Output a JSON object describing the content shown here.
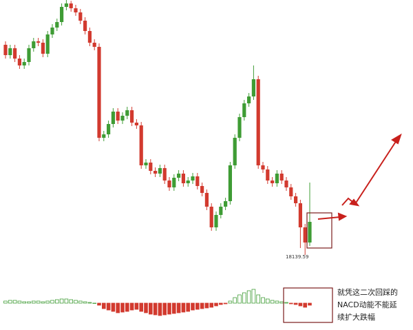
{
  "chart_data": {
    "type": "candlestick",
    "open": [
      19360,
      19300,
      19340,
      19280,
      19240,
      19260,
      19340,
      19380,
      19372,
      19308,
      19420,
      19460,
      19492,
      19580,
      19600,
      19572,
      19548,
      19500,
      19440,
      19372,
      19348,
      18820,
      18840,
      18900,
      18972,
      18920,
      18948,
      18980,
      18908,
      18892,
      18660,
      18676,
      18628,
      18612,
      18644,
      18572,
      18532,
      18588,
      18612,
      18556,
      18572,
      18596,
      18540,
      18500,
      18420,
      18300,
      18372,
      18420,
      18452,
      18660,
      18820,
      18940,
      19020,
      19060,
      19160,
      18660,
      18636,
      18572,
      18556,
      18612,
      18572,
      18532,
      18480,
      18440,
      18300,
      18212
    ],
    "high": [
      19380,
      19360,
      19360,
      19300,
      19280,
      19360,
      19400,
      19400,
      19392,
      19440,
      19480,
      19512,
      19600,
      19620,
      19615,
      19592,
      19568,
      19520,
      19460,
      19392,
      19368,
      18860,
      18920,
      18992,
      18992,
      18968,
      19000,
      19000,
      18928,
      18912,
      18696,
      18696,
      18648,
      18664,
      18664,
      18592,
      18608,
      18632,
      18632,
      18592,
      18616,
      18616,
      18560,
      18520,
      18440,
      18392,
      18440,
      18472,
      18680,
      18840,
      18960,
      19040,
      19080,
      19240,
      19180,
      18680,
      18656,
      18592,
      18632,
      18632,
      18592,
      18552,
      18500,
      18460,
      18320,
      18560
    ],
    "low": [
      19280,
      19280,
      19260,
      19220,
      19220,
      19240,
      19320,
      19352,
      19288,
      19288,
      19400,
      19440,
      19472,
      19560,
      19552,
      19528,
      19480,
      19420,
      19352,
      19328,
      18800,
      18800,
      18820,
      18880,
      18900,
      18900,
      18928,
      18888,
      18872,
      18640,
      18640,
      18608,
      18592,
      18592,
      18552,
      18512,
      18512,
      18568,
      18536,
      18536,
      18552,
      18520,
      18480,
      18400,
      18280,
      18280,
      18352,
      18400,
      18432,
      18640,
      18800,
      18920,
      19000,
      19040,
      18640,
      18616,
      18552,
      18536,
      18536,
      18552,
      18512,
      18460,
      18420,
      18180,
      18140,
      18192
    ],
    "close": [
      19300,
      19340,
      19280,
      19240,
      19260,
      19340,
      19380,
      19372,
      19308,
      19420,
      19460,
      19492,
      19580,
      19600,
      19572,
      19548,
      19500,
      19440,
      19372,
      19348,
      18820,
      18840,
      18900,
      18972,
      18920,
      18948,
      18980,
      18908,
      18892,
      18660,
      18676,
      18628,
      18612,
      18644,
      18572,
      18532,
      18588,
      18612,
      18556,
      18572,
      18596,
      18540,
      18500,
      18420,
      18300,
      18372,
      18420,
      18452,
      18660,
      18820,
      18940,
      19020,
      19060,
      19160,
      18660,
      18636,
      18572,
      18556,
      18612,
      18572,
      18532,
      18480,
      18440,
      18300,
      18212,
      18332
    ],
    "up_color": "#3f9c35",
    "down_color": "#d23a2f",
    "ylim": [
      18020,
      19620
    ],
    "macd": [
      3,
      4,
      4,
      3,
      2,
      2,
      3,
      3,
      2,
      3,
      4,
      5,
      6,
      6,
      5,
      4,
      3,
      2,
      1,
      0,
      -3,
      -8,
      -10,
      -12,
      -14,
      -13,
      -12,
      -10,
      -9,
      -12,
      -14,
      -16,
      -17,
      -18,
      -17,
      -16,
      -15,
      -14,
      -13,
      -12,
      -10,
      -9,
      -8,
      -7,
      -6,
      -4,
      -2,
      -1,
      3,
      8,
      12,
      15,
      18,
      20,
      12,
      8,
      6,
      4,
      3,
      2,
      1,
      -1,
      -2,
      -4,
      -6,
      -3
    ],
    "low_label": "18139.59",
    "note": [
      "就凭这二次回踩的",
      "NACD动能不能延",
      "续扩大跌幅"
    ]
  }
}
